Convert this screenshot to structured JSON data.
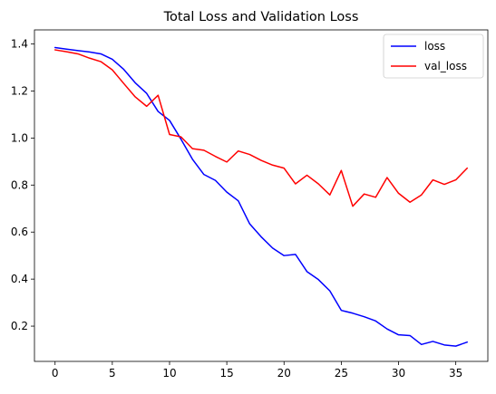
{
  "chart_data": {
    "type": "line",
    "title": "Total Loss and Validation Loss",
    "xlabel": "",
    "ylabel": "",
    "xlim": [
      -1.8,
      37.8
    ],
    "ylim": [
      0.05,
      1.46
    ],
    "x_ticks": [
      0,
      5,
      10,
      15,
      20,
      25,
      30,
      35
    ],
    "y_ticks": [
      0.2,
      0.4,
      0.6,
      0.8,
      1.0,
      1.2,
      1.4
    ],
    "y_tick_labels": [
      "0.2",
      "0.4",
      "0.6",
      "0.8",
      "1.0",
      "1.2",
      "1.4"
    ],
    "grid": false,
    "legend_position": "top-right",
    "x": [
      0,
      1,
      2,
      3,
      4,
      5,
      6,
      7,
      8,
      9,
      10,
      11,
      12,
      13,
      14,
      15,
      16,
      17,
      18,
      19,
      20,
      21,
      22,
      23,
      24,
      25,
      26,
      27,
      28,
      29,
      30,
      31,
      32,
      33,
      34,
      35,
      36
    ],
    "series": [
      {
        "name": "loss",
        "color": "#0000ff",
        "values": [
          1.385,
          1.378,
          1.372,
          1.366,
          1.358,
          1.335,
          1.292,
          1.235,
          1.19,
          1.113,
          1.075,
          0.995,
          0.91,
          0.845,
          0.82,
          0.77,
          0.733,
          0.635,
          0.58,
          0.532,
          0.5,
          0.505,
          0.432,
          0.398,
          0.35,
          0.267,
          0.255,
          0.24,
          0.222,
          0.188,
          0.163,
          0.16,
          0.122,
          0.135,
          0.12,
          0.115,
          0.132
        ]
      },
      {
        "name": "val_loss",
        "color": "#ff0000",
        "values": [
          1.375,
          1.367,
          1.358,
          1.34,
          1.325,
          1.29,
          1.232,
          1.175,
          1.135,
          1.182,
          1.015,
          1.005,
          0.955,
          0.948,
          0.922,
          0.898,
          0.945,
          0.93,
          0.905,
          0.885,
          0.872,
          0.805,
          0.842,
          0.805,
          0.758,
          0.862,
          0.71,
          0.762,
          0.748,
          0.832,
          0.765,
          0.727,
          0.758,
          0.822,
          0.803,
          0.822,
          0.872
        ]
      }
    ]
  }
}
